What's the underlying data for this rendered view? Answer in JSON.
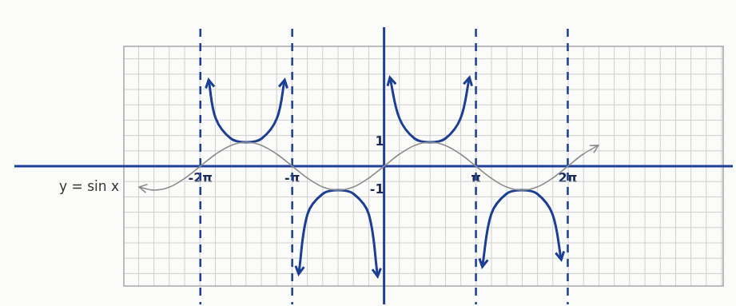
{
  "chart_data": {
    "type": "line",
    "xlim": [
      -8.9,
      11.6
    ],
    "xticks": [
      {
        "value": -6.283,
        "label": "-2π"
      },
      {
        "value": -3.142,
        "label": "-π"
      },
      {
        "value": 3.142,
        "label": "π"
      },
      {
        "value": 6.283,
        "label": "2π"
      }
    ],
    "ylim": [
      -5,
      5
    ],
    "yticks": [
      -1,
      1
    ],
    "grid": true,
    "asymptotes": {
      "x": [
        -6.283,
        -3.142,
        3.142,
        6.283
      ],
      "color": "#1c3f94",
      "line_style": "dashed"
    },
    "annotations": [
      {
        "text": "y = sin x",
        "y": -0.9
      }
    ],
    "series": [
      {
        "color": "#8c8c8c",
        "line_style": "thin",
        "marker": "arrow",
        "x": [
          -8.378,
          -7.854,
          -7.33,
          -6.807,
          -6.283,
          -5.76,
          -5.236,
          -4.712,
          -4.189,
          -3.665,
          -3.142,
          -2.618,
          -2.094,
          -1.571,
          -1.047,
          -0.524,
          0,
          0.524,
          1.047,
          1.571,
          2.094,
          2.618,
          3.142,
          3.665,
          4.189,
          4.712,
          5.236,
          5.76,
          6.283,
          6.807,
          7.33
        ],
        "values": [
          -0.87,
          -1,
          -0.87,
          -0.5,
          0,
          0.5,
          0.87,
          1,
          0.87,
          0.5,
          0,
          -0.5,
          -0.87,
          -1,
          -0.87,
          -0.5,
          0,
          0.5,
          0.87,
          1,
          0.87,
          0.5,
          0,
          -0.5,
          -0.87,
          -1,
          -0.87,
          -0.5,
          0,
          0.5,
          0.87
        ]
      },
      {
        "color": "#1c3f94",
        "line_style": "solid",
        "marker": "arrow",
        "x": [
          -6.0,
          -5.76,
          -5.236,
          -4.712,
          -4.189,
          -3.665,
          -3.4
        ],
        "values": [
          3.6,
          2.0,
          1.15,
          1,
          1.15,
          2.0,
          3.6
        ]
      },
      {
        "color": "#1c3f94",
        "line_style": "solid",
        "marker": "arrow",
        "x": [
          -2.92,
          -2.618,
          -2.094,
          -1.571,
          -1.047,
          -0.524,
          -0.22
        ],
        "values": [
          -4.5,
          -2.0,
          -1.15,
          -1,
          -1.15,
          -2.0,
          -4.6
        ]
      },
      {
        "color": "#1c3f94",
        "line_style": "solid",
        "marker": "arrow",
        "x": [
          0.2,
          0.524,
          1.047,
          1.571,
          2.094,
          2.618,
          2.92
        ],
        "values": [
          3.7,
          2.0,
          1.15,
          1,
          1.15,
          2.0,
          3.7
        ]
      },
      {
        "color": "#1c3f94",
        "line_style": "solid",
        "marker": "arrow",
        "x": [
          3.36,
          3.665,
          4.189,
          4.712,
          5.236,
          5.76,
          6.06
        ],
        "values": [
          -4.2,
          -2.0,
          -1.15,
          -1,
          -1.15,
          -2.0,
          -3.9
        ]
      }
    ]
  }
}
